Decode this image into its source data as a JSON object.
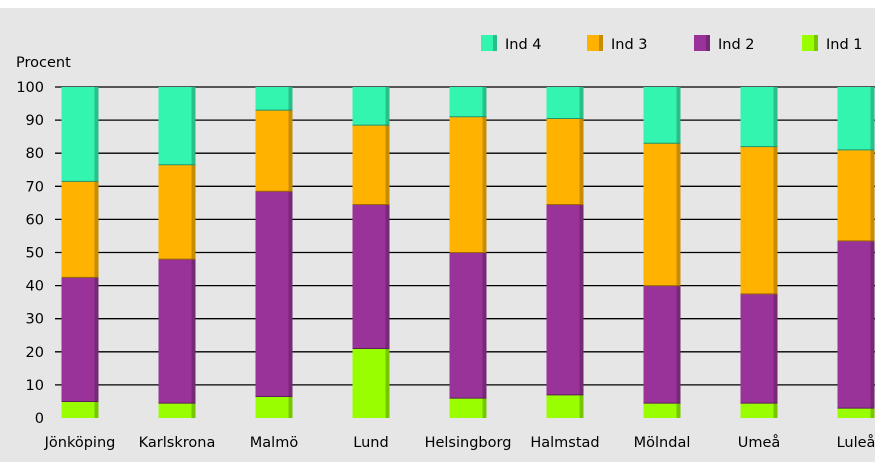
{
  "chart_data": {
    "type": "bar",
    "stacked": true,
    "ylabel": "Procent",
    "xlabel": "",
    "ylim": [
      0,
      100
    ],
    "yticks": [
      0,
      10,
      20,
      30,
      40,
      50,
      60,
      70,
      80,
      90,
      100
    ],
    "grid": true,
    "legend_position": "top-right",
    "categories": [
      "Jönköping",
      "Karlskrona",
      "Malmö",
      "Lund",
      "Helsingborg",
      "Halmstad",
      "Mölndal",
      "Umeå",
      "Luleå"
    ],
    "series": [
      {
        "name": "Ind 1",
        "color": "#99ff00",
        "values": [
          5,
          4.5,
          6.5,
          21,
          6,
          7,
          4.5,
          4.5,
          3
        ]
      },
      {
        "name": "Ind 2",
        "color": "#993399",
        "values": [
          37.5,
          43.5,
          62,
          43.5,
          44,
          57.5,
          35.5,
          33,
          50.5
        ]
      },
      {
        "name": "Ind 3",
        "color": "#ffb300",
        "values": [
          29,
          28.5,
          24.5,
          24,
          41,
          26,
          43,
          44.5,
          27.5
        ]
      },
      {
        "name": "Ind 4",
        "color": "#33f5b0",
        "values": [
          28.5,
          23.5,
          7,
          11.5,
          9,
          9.5,
          17,
          18,
          19
        ]
      }
    ],
    "background_color": "#e6e6e6",
    "gridline_color": "#000000"
  }
}
